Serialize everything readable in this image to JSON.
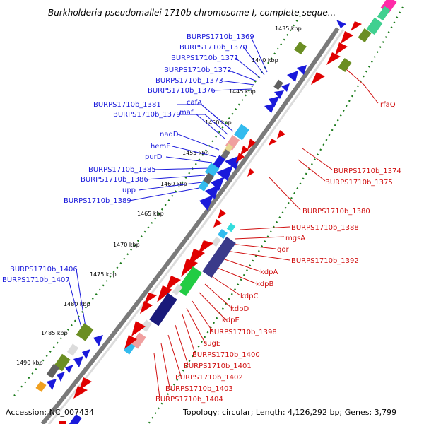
{
  "title": "Burkholderia pseudomallei 1710b chromosome I, complete seque...",
  "footer": {
    "accession": "Accession: NC_007434",
    "topology": "Topology: circular; Length: 4,126,292 bp; Genes: 3,799"
  },
  "colors": {
    "forward_label": "#1a1adb",
    "reverse_label": "#d01010",
    "backbone": "#808080",
    "tick": "#1a7a1a"
  },
  "kbp_ticks": [
    "1435 kbp",
    "1440 kbp",
    "1445 kbp",
    "1450 kbp",
    "1455 kbp",
    "1460 kbp",
    "1465 kbp",
    "1470 kbp",
    "1475 kbp",
    "1480 kbp",
    "1485 kbp",
    "1490 kbp"
  ],
  "forward_labels": [
    "BURPS1710b_1369",
    "BURPS1710b_1370",
    "BURPS1710b_1371",
    "BURPS1710b_1372",
    "BURPS1710b_1373",
    "BURPS1710b_1376",
    "BURPS1710b_1381",
    "cafA",
    "BURPS1710b_1379",
    "maf",
    "nadD",
    "hemF",
    "purD",
    "BURPS1710b_1385",
    "BURPS1710b_1386",
    "upp",
    "BURPS1710b_1389",
    "BURPS1710b_1406",
    "BURPS1710b_1407"
  ],
  "reverse_labels": [
    "rfaQ",
    "BURPS1710b_1374",
    "BURPS1710b_1375",
    "BURPS1710b_1380",
    "BURPS1710b_1388",
    "mgsA",
    "qor",
    "BURPS1710b_1392",
    "kdpA",
    "kdpB",
    "kdpC",
    "kdpD",
    "kdpE",
    "BURPS1710b_1398",
    "sugE",
    "BURPS1710b_1400",
    "BURPS1710b_1401",
    "BURPS1710b_1402",
    "BURPS1710b_1403",
    "BURPS1710b_1404"
  ]
}
